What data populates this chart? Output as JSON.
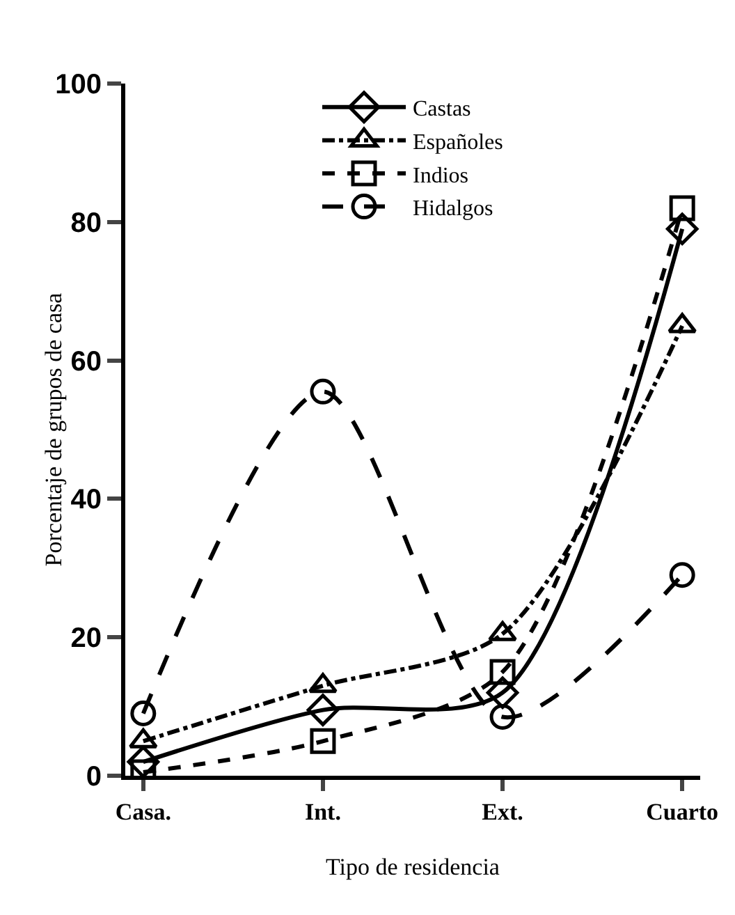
{
  "chart_data": {
    "type": "line",
    "xlabel": "Tipo de residencia",
    "ylabel": "Porcentaje de grupos de casa",
    "categories": [
      "Casa.",
      "Int.",
      "Ext.",
      "Cuarto"
    ],
    "ylim": [
      0,
      100
    ],
    "yticks": [
      0,
      20,
      40,
      60,
      80,
      100
    ],
    "grid": false,
    "legend": "top",
    "series": [
      {
        "name": "Castas",
        "color": "#000000",
        "marker": "diamond",
        "line_style": "solid",
        "values": [
          2,
          9.5,
          12,
          79
        ]
      },
      {
        "name": "Españoles",
        "color": "#000000",
        "marker": "triangle",
        "line_style": "dashdot",
        "values": [
          5,
          13,
          20.5,
          65
        ]
      },
      {
        "name": "Indios",
        "color": "#000000",
        "marker": "square",
        "line_style": "dashed",
        "values": [
          0.5,
          5,
          15,
          82
        ]
      },
      {
        "name": "Hidalgos",
        "color": "#000000",
        "marker": "circle",
        "line_style": "longdash",
        "values": [
          9,
          55.5,
          8.5,
          29
        ]
      }
    ]
  }
}
